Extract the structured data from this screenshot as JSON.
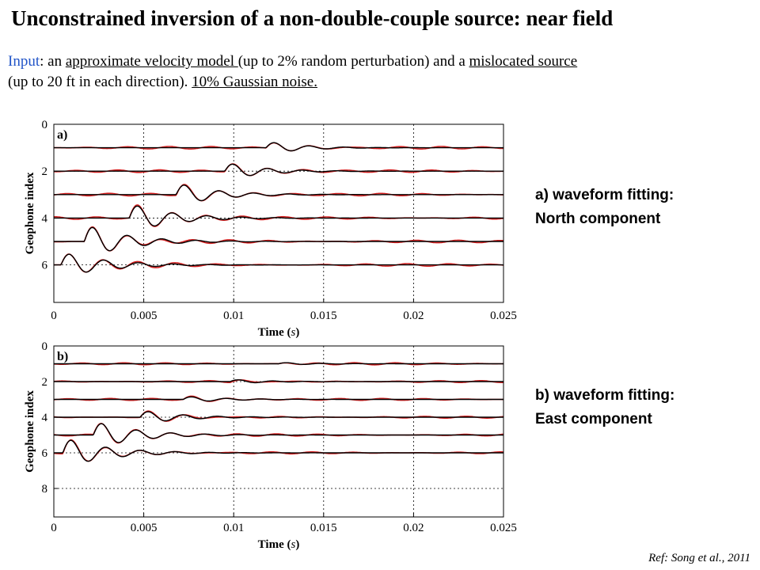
{
  "title": "Unconstrained inversion of a non-double-couple source: near field",
  "intro": {
    "input_label": "Input",
    "p1": ": an ",
    "u1": "approximate velocity model ",
    "p2": "(up to 2% random perturbation) and a ",
    "u2": "mislocated source",
    "p3": "(up to 20 ft in each direction). ",
    "u3": "10% Gaussian noise."
  },
  "colors": {
    "observed": "#d42020",
    "synthetic": "#000000",
    "input_label": "#2255c8"
  },
  "chart_data": [
    {
      "type": "line",
      "panel_label": "a)",
      "caption_line1": "a) waveform fitting:",
      "caption_line2": "North component",
      "xlabel_main": "Time",
      "xlabel_unit": "s",
      "ylabel": "Geophone index",
      "xlim": [
        0,
        0.025
      ],
      "ylim": [
        7.6,
        0
      ],
      "x_ticks": [
        "0",
        "0.005",
        "0.01",
        "0.015",
        "0.02",
        "0.025"
      ],
      "y_ticks": [
        "0",
        "2",
        "4",
        "6"
      ],
      "grid": "dotted",
      "traces": [
        {
          "baseline": 1,
          "onset": 0.0118,
          "amp": 0.55,
          "freq": 520,
          "decay": 950
        },
        {
          "baseline": 2,
          "onset": 0.0095,
          "amp": 0.75,
          "freq": 520,
          "decay": 900
        },
        {
          "baseline": 3,
          "onset": 0.0068,
          "amp": 1.0,
          "freq": 520,
          "decay": 850
        },
        {
          "baseline": 4,
          "onset": 0.0042,
          "amp": 1.25,
          "freq": 520,
          "decay": 800
        },
        {
          "baseline": 5,
          "onset": 0.0017,
          "amp": 1.45,
          "freq": 520,
          "decay": 780
        },
        {
          "baseline": 6,
          "onset": 0.0004,
          "amp": 1.1,
          "freq": 520,
          "decay": 750
        }
      ]
    },
    {
      "type": "line",
      "panel_label": "b)",
      "caption_line1": "b) waveform fitting:",
      "caption_line2": "East component",
      "xlabel_main": "Time",
      "xlabel_unit": "s",
      "ylabel": "Geophone index",
      "xlim": [
        0,
        0.025
      ],
      "ylim": [
        9.6,
        0
      ],
      "x_ticks": [
        "0",
        "0.005",
        "0.01",
        "0.015",
        "0.02",
        "0.025"
      ],
      "y_ticks": [
        "0",
        "2",
        "4",
        "6",
        "8"
      ],
      "grid": "dotted",
      "traces": [
        {
          "baseline": 1,
          "onset": 0.0125,
          "amp": 0.15,
          "freq": 520,
          "decay": 900
        },
        {
          "baseline": 2,
          "onset": 0.0098,
          "amp": 0.25,
          "freq": 520,
          "decay": 900
        },
        {
          "baseline": 3,
          "onset": 0.0072,
          "amp": 0.35,
          "freq": 520,
          "decay": 850
        },
        {
          "baseline": 4,
          "onset": 0.0048,
          "amp": 0.75,
          "freq": 520,
          "decay": 800
        },
        {
          "baseline": 5,
          "onset": 0.0022,
          "amp": 1.55,
          "freq": 520,
          "decay": 780
        },
        {
          "baseline": 6,
          "onset": 0.0005,
          "amp": 1.7,
          "freq": 520,
          "decay": 750
        }
      ]
    }
  ],
  "ref": "Ref: Song et al., 2011"
}
